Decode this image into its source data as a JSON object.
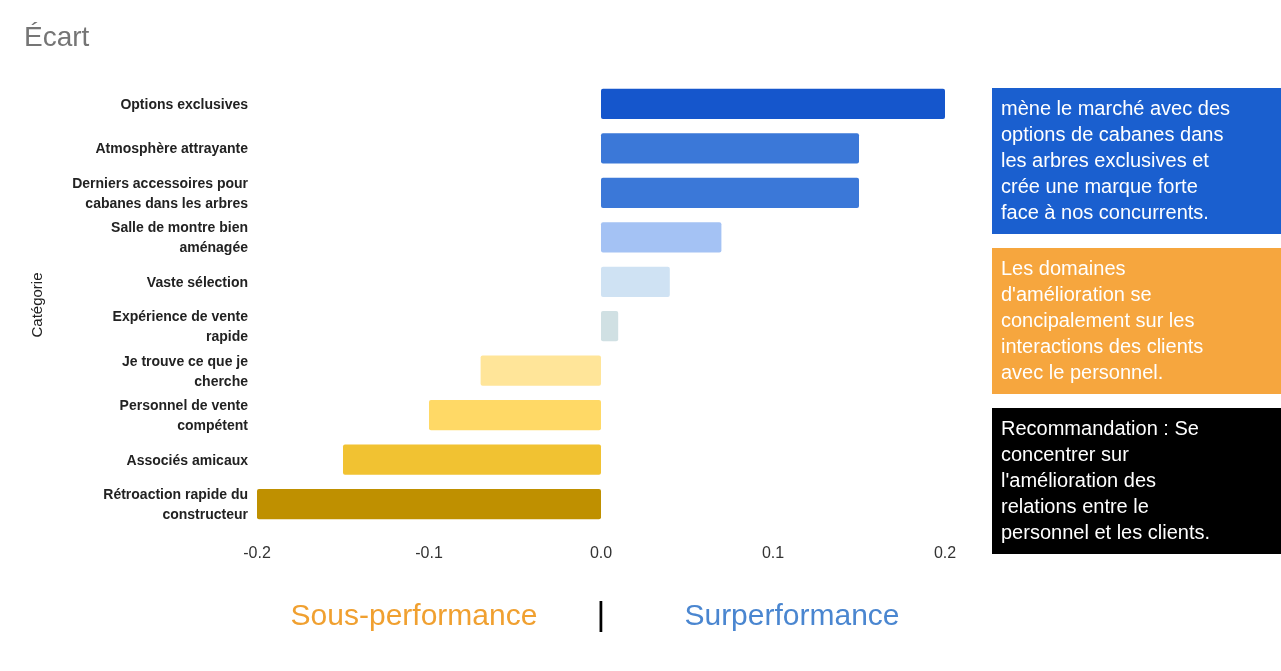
{
  "chart_data": {
    "type": "bar",
    "orientation": "horizontal",
    "title": "Écart",
    "ylabel": "Catégorie",
    "categories": [
      "Options exclusives",
      "Atmosphère attrayante",
      "Derniers accessoires pour cabanes dans les arbres",
      "Salle de montre bien aménagée",
      "Vaste sélection",
      "Expérience de vente rapide",
      "Je trouve ce que je cherche",
      "Personnel de vente compétent",
      "Associés amicaux",
      "Rétroaction rapide du constructeur"
    ],
    "values": [
      0.2,
      0.15,
      0.15,
      0.07,
      0.04,
      0.01,
      -0.07,
      -0.1,
      -0.15,
      -0.2
    ],
    "colors": [
      "#1556cc",
      "#3b78d8",
      "#3b78d8",
      "#a4c2f4",
      "#cfe2f3",
      "#d0e0e3",
      "#ffe599",
      "#ffd966",
      "#f1c232",
      "#bf9000"
    ],
    "xlim": [
      -0.2,
      0.2
    ],
    "xticks": [
      -0.2,
      -0.1,
      {
        "value": 0,
        "label": "0.0"
      },
      0.1,
      0.2
    ],
    "annotations": [
      "mène le marché avec des options de cabanes dans les arbres exclusives et crée une marque forte face à nos concurrents.",
      "Les domaines d'amélioration se concipalement sur les interactions des clients avec le personnel.",
      "Recommandation : Se concentrer sur l'amélioration des relations entre le personnel et les clients.",
      "Sous-performance",
      "|",
      "Surperformance"
    ]
  }
}
